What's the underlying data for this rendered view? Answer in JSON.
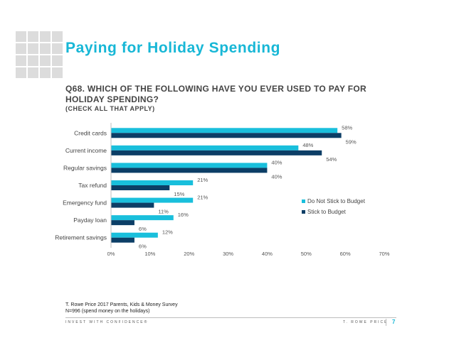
{
  "title": "Paying for Holiday Spending",
  "question": "Q68. WHICH OF THE FOLLOWING HAVE YOU EVER USED TO PAY FOR HOLIDAY SPENDING?",
  "question_sub": "(CHECK ALL THAT APPLY)",
  "source_line1": "T. Rowe Price 2017 Parents, Kids & Money Survey",
  "source_line2": "N=996 (spend money on the holidays)",
  "footer": {
    "tagline": "INVEST WITH CONFIDENCE®",
    "brand": "T. ROWE PRICE",
    "page_number": "7"
  },
  "colors": {
    "accent": "#17b7d6",
    "series_do_not_stick": "#19bfdc",
    "series_stick": "#0c3e66"
  },
  "chart_data": {
    "type": "bar",
    "orientation": "horizontal",
    "categories": [
      "Credit cards",
      "Current income",
      "Regular savings",
      "Tax refund",
      "Emergency fund",
      "Payday loan",
      "Retirement savings"
    ],
    "series": [
      {
        "name": "Do Not Stick to Budget",
        "values": [
          58,
          48,
          40,
          21,
          21,
          16,
          12
        ],
        "labels": [
          "58%",
          "48%",
          "40%",
          "21%",
          "21%",
          "16%",
          "12%"
        ]
      },
      {
        "name": "Stick to Budget",
        "values": [
          59,
          54,
          40,
          15,
          11,
          6,
          6
        ],
        "labels": [
          "59%",
          "54%",
          "40%",
          "15%",
          "11%",
          "6%",
          "6%"
        ]
      }
    ],
    "xlim": [
      0,
      70
    ],
    "xticks": [
      "0%",
      "10%",
      "20%",
      "30%",
      "40%",
      "50%",
      "60%",
      "70%"
    ],
    "xtick_values": [
      0,
      10,
      20,
      30,
      40,
      50,
      60,
      70
    ],
    "grid": false,
    "legend_position": "right"
  }
}
